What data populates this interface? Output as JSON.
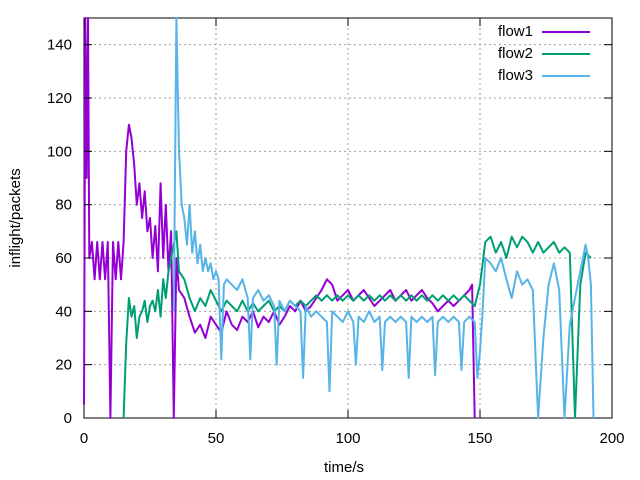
{
  "chart_data": {
    "type": "line",
    "xlabel": "time/s",
    "ylabel": "inflight/packets",
    "xlim": [
      0,
      200
    ],
    "ylim": [
      0,
      150
    ],
    "x_ticks": [
      "0",
      "50",
      "100",
      "150",
      "200"
    ],
    "y_ticks": [
      "0",
      "20",
      "40",
      "60",
      "80",
      "100",
      "120",
      "140"
    ],
    "grid": true,
    "legend_position": "top-right",
    "series": [
      {
        "name": "flow1",
        "color": "#9400d3",
        "points": [
          [
            0,
            5
          ],
          [
            0.5,
            150
          ],
          [
            1,
            90
          ],
          [
            1.5,
            150
          ],
          [
            2,
            60
          ],
          [
            3,
            66
          ],
          [
            4,
            52
          ],
          [
            5,
            66
          ],
          [
            6,
            52
          ],
          [
            7,
            66
          ],
          [
            8,
            52
          ],
          [
            9,
            66
          ],
          [
            10,
            0
          ],
          [
            11,
            66
          ],
          [
            12,
            52
          ],
          [
            13,
            66
          ],
          [
            14,
            52
          ],
          [
            15,
            66
          ],
          [
            16,
            100
          ],
          [
            17,
            110
          ],
          [
            18,
            105
          ],
          [
            19,
            95
          ],
          [
            20,
            80
          ],
          [
            21,
            88
          ],
          [
            22,
            75
          ],
          [
            23,
            85
          ],
          [
            24,
            70
          ],
          [
            25,
            75
          ],
          [
            26,
            60
          ],
          [
            27,
            72
          ],
          [
            28,
            55
          ],
          [
            29,
            88
          ],
          [
            30,
            60
          ],
          [
            31,
            80
          ],
          [
            32,
            55
          ],
          [
            33,
            70
          ],
          [
            34,
            0
          ],
          [
            35,
            60
          ],
          [
            36,
            48
          ],
          [
            38,
            45
          ],
          [
            40,
            38
          ],
          [
            42,
            32
          ],
          [
            44,
            35
          ],
          [
            46,
            30
          ],
          [
            48,
            38
          ],
          [
            50,
            35
          ],
          [
            52,
            32
          ],
          [
            54,
            40
          ],
          [
            56,
            35
          ],
          [
            58,
            33
          ],
          [
            60,
            38
          ],
          [
            62,
            36
          ],
          [
            64,
            40
          ],
          [
            66,
            34
          ],
          [
            68,
            38
          ],
          [
            70,
            36
          ],
          [
            72,
            40
          ],
          [
            74,
            35
          ],
          [
            76,
            38
          ],
          [
            78,
            42
          ],
          [
            80,
            40
          ],
          [
            82,
            44
          ],
          [
            84,
            40
          ],
          [
            86,
            42
          ],
          [
            88,
            45
          ],
          [
            90,
            48
          ],
          [
            92,
            52
          ],
          [
            94,
            50
          ],
          [
            96,
            44
          ],
          [
            98,
            46
          ],
          [
            100,
            48
          ],
          [
            102,
            44
          ],
          [
            104,
            46
          ],
          [
            106,
            48
          ],
          [
            108,
            45
          ],
          [
            110,
            42
          ],
          [
            112,
            44
          ],
          [
            114,
            46
          ],
          [
            116,
            48
          ],
          [
            118,
            44
          ],
          [
            120,
            46
          ],
          [
            122,
            48
          ],
          [
            124,
            44
          ],
          [
            126,
            46
          ],
          [
            128,
            48
          ],
          [
            130,
            45
          ],
          [
            132,
            43
          ],
          [
            134,
            40
          ],
          [
            136,
            42
          ],
          [
            138,
            44
          ],
          [
            140,
            42
          ],
          [
            142,
            44
          ],
          [
            144,
            46
          ],
          [
            146,
            48
          ],
          [
            147,
            50
          ],
          [
            148,
            0
          ]
        ]
      },
      {
        "name": "flow2",
        "color": "#009e73",
        "points": [
          [
            15,
            0
          ],
          [
            16,
            28
          ],
          [
            17,
            45
          ],
          [
            18,
            38
          ],
          [
            19,
            42
          ],
          [
            20,
            30
          ],
          [
            21,
            38
          ],
          [
            22,
            40
          ],
          [
            23,
            44
          ],
          [
            24,
            36
          ],
          [
            25,
            42
          ],
          [
            26,
            44
          ],
          [
            27,
            40
          ],
          [
            28,
            48
          ],
          [
            29,
            38
          ],
          [
            30,
            52
          ],
          [
            31,
            45
          ],
          [
            32,
            55
          ],
          [
            33,
            60
          ],
          [
            34,
            65
          ],
          [
            35,
            70
          ],
          [
            36,
            55
          ],
          [
            38,
            52
          ],
          [
            40,
            45
          ],
          [
            42,
            40
          ],
          [
            44,
            45
          ],
          [
            46,
            42
          ],
          [
            48,
            48
          ],
          [
            50,
            44
          ],
          [
            52,
            40
          ],
          [
            54,
            44
          ],
          [
            56,
            42
          ],
          [
            58,
            40
          ],
          [
            60,
            44
          ],
          [
            62,
            40
          ],
          [
            64,
            43
          ],
          [
            66,
            40
          ],
          [
            68,
            42
          ],
          [
            70,
            44
          ],
          [
            72,
            40
          ],
          [
            74,
            42
          ],
          [
            76,
            40
          ],
          [
            78,
            44
          ],
          [
            80,
            42
          ],
          [
            82,
            44
          ],
          [
            84,
            42
          ],
          [
            86,
            44
          ],
          [
            88,
            46
          ],
          [
            90,
            44
          ],
          [
            92,
            46
          ],
          [
            94,
            44
          ],
          [
            96,
            46
          ],
          [
            98,
            44
          ],
          [
            100,
            46
          ],
          [
            102,
            44
          ],
          [
            104,
            46
          ],
          [
            106,
            44
          ],
          [
            108,
            46
          ],
          [
            110,
            44
          ],
          [
            112,
            46
          ],
          [
            114,
            44
          ],
          [
            116,
            46
          ],
          [
            118,
            44
          ],
          [
            120,
            46
          ],
          [
            122,
            44
          ],
          [
            124,
            46
          ],
          [
            126,
            44
          ],
          [
            128,
            46
          ],
          [
            130,
            44
          ],
          [
            132,
            46
          ],
          [
            134,
            44
          ],
          [
            136,
            46
          ],
          [
            138,
            44
          ],
          [
            140,
            46
          ],
          [
            142,
            44
          ],
          [
            144,
            46
          ],
          [
            146,
            44
          ],
          [
            148,
            42
          ],
          [
            150,
            50
          ],
          [
            152,
            66
          ],
          [
            154,
            68
          ],
          [
            156,
            62
          ],
          [
            158,
            66
          ],
          [
            160,
            60
          ],
          [
            162,
            68
          ],
          [
            164,
            64
          ],
          [
            166,
            68
          ],
          [
            168,
            66
          ],
          [
            170,
            62
          ],
          [
            172,
            66
          ],
          [
            174,
            62
          ],
          [
            176,
            64
          ],
          [
            178,
            66
          ],
          [
            180,
            62
          ],
          [
            182,
            64
          ],
          [
            184,
            62
          ],
          [
            186,
            0
          ],
          [
            188,
            50
          ],
          [
            190,
            62
          ],
          [
            192,
            60
          ]
        ]
      },
      {
        "name": "flow3",
        "color": "#56b4e9",
        "points": [
          [
            34,
            40
          ],
          [
            35,
            150
          ],
          [
            36,
            100
          ],
          [
            37,
            80
          ],
          [
            38,
            75
          ],
          [
            39,
            65
          ],
          [
            40,
            80
          ],
          [
            41,
            62
          ],
          [
            42,
            70
          ],
          [
            43,
            58
          ],
          [
            44,
            65
          ],
          [
            45,
            55
          ],
          [
            46,
            60
          ],
          [
            47,
            55
          ],
          [
            48,
            58
          ],
          [
            49,
            52
          ],
          [
            50,
            55
          ],
          [
            51,
            52
          ],
          [
            52,
            22
          ],
          [
            53,
            50
          ],
          [
            54,
            52
          ],
          [
            56,
            50
          ],
          [
            58,
            48
          ],
          [
            60,
            52
          ],
          [
            62,
            45
          ],
          [
            63,
            22
          ],
          [
            64,
            45
          ],
          [
            66,
            48
          ],
          [
            68,
            44
          ],
          [
            70,
            46
          ],
          [
            72,
            42
          ],
          [
            73,
            20
          ],
          [
            74,
            44
          ],
          [
            76,
            40
          ],
          [
            78,
            44
          ],
          [
            80,
            42
          ],
          [
            82,
            40
          ],
          [
            83,
            15
          ],
          [
            84,
            42
          ],
          [
            86,
            38
          ],
          [
            88,
            40
          ],
          [
            90,
            38
          ],
          [
            92,
            36
          ],
          [
            93,
            10
          ],
          [
            94,
            40
          ],
          [
            96,
            38
          ],
          [
            98,
            36
          ],
          [
            100,
            40
          ],
          [
            102,
            36
          ],
          [
            103,
            20
          ],
          [
            104,
            38
          ],
          [
            106,
            36
          ],
          [
            108,
            40
          ],
          [
            110,
            36
          ],
          [
            112,
            38
          ],
          [
            113,
            18
          ],
          [
            114,
            36
          ],
          [
            116,
            38
          ],
          [
            118,
            36
          ],
          [
            120,
            38
          ],
          [
            122,
            36
          ],
          [
            123,
            15
          ],
          [
            124,
            38
          ],
          [
            126,
            36
          ],
          [
            128,
            38
          ],
          [
            130,
            36
          ],
          [
            132,
            38
          ],
          [
            133,
            16
          ],
          [
            134,
            36
          ],
          [
            136,
            38
          ],
          [
            138,
            36
          ],
          [
            140,
            38
          ],
          [
            142,
            36
          ],
          [
            143,
            18
          ],
          [
            144,
            36
          ],
          [
            146,
            38
          ],
          [
            148,
            36
          ],
          [
            149,
            15
          ],
          [
            150,
            25
          ],
          [
            151,
            40
          ],
          [
            152,
            60
          ],
          [
            154,
            58
          ],
          [
            156,
            55
          ],
          [
            158,
            60
          ],
          [
            160,
            52
          ],
          [
            162,
            45
          ],
          [
            164,
            55
          ],
          [
            166,
            50
          ],
          [
            168,
            52
          ],
          [
            170,
            48
          ],
          [
            172,
            0
          ],
          [
            174,
            30
          ],
          [
            176,
            50
          ],
          [
            178,
            58
          ],
          [
            180,
            48
          ],
          [
            182,
            0
          ],
          [
            184,
            35
          ],
          [
            186,
            45
          ],
          [
            188,
            55
          ],
          [
            190,
            65
          ],
          [
            191,
            60
          ],
          [
            192,
            50
          ],
          [
            193,
            0
          ]
        ]
      }
    ]
  }
}
